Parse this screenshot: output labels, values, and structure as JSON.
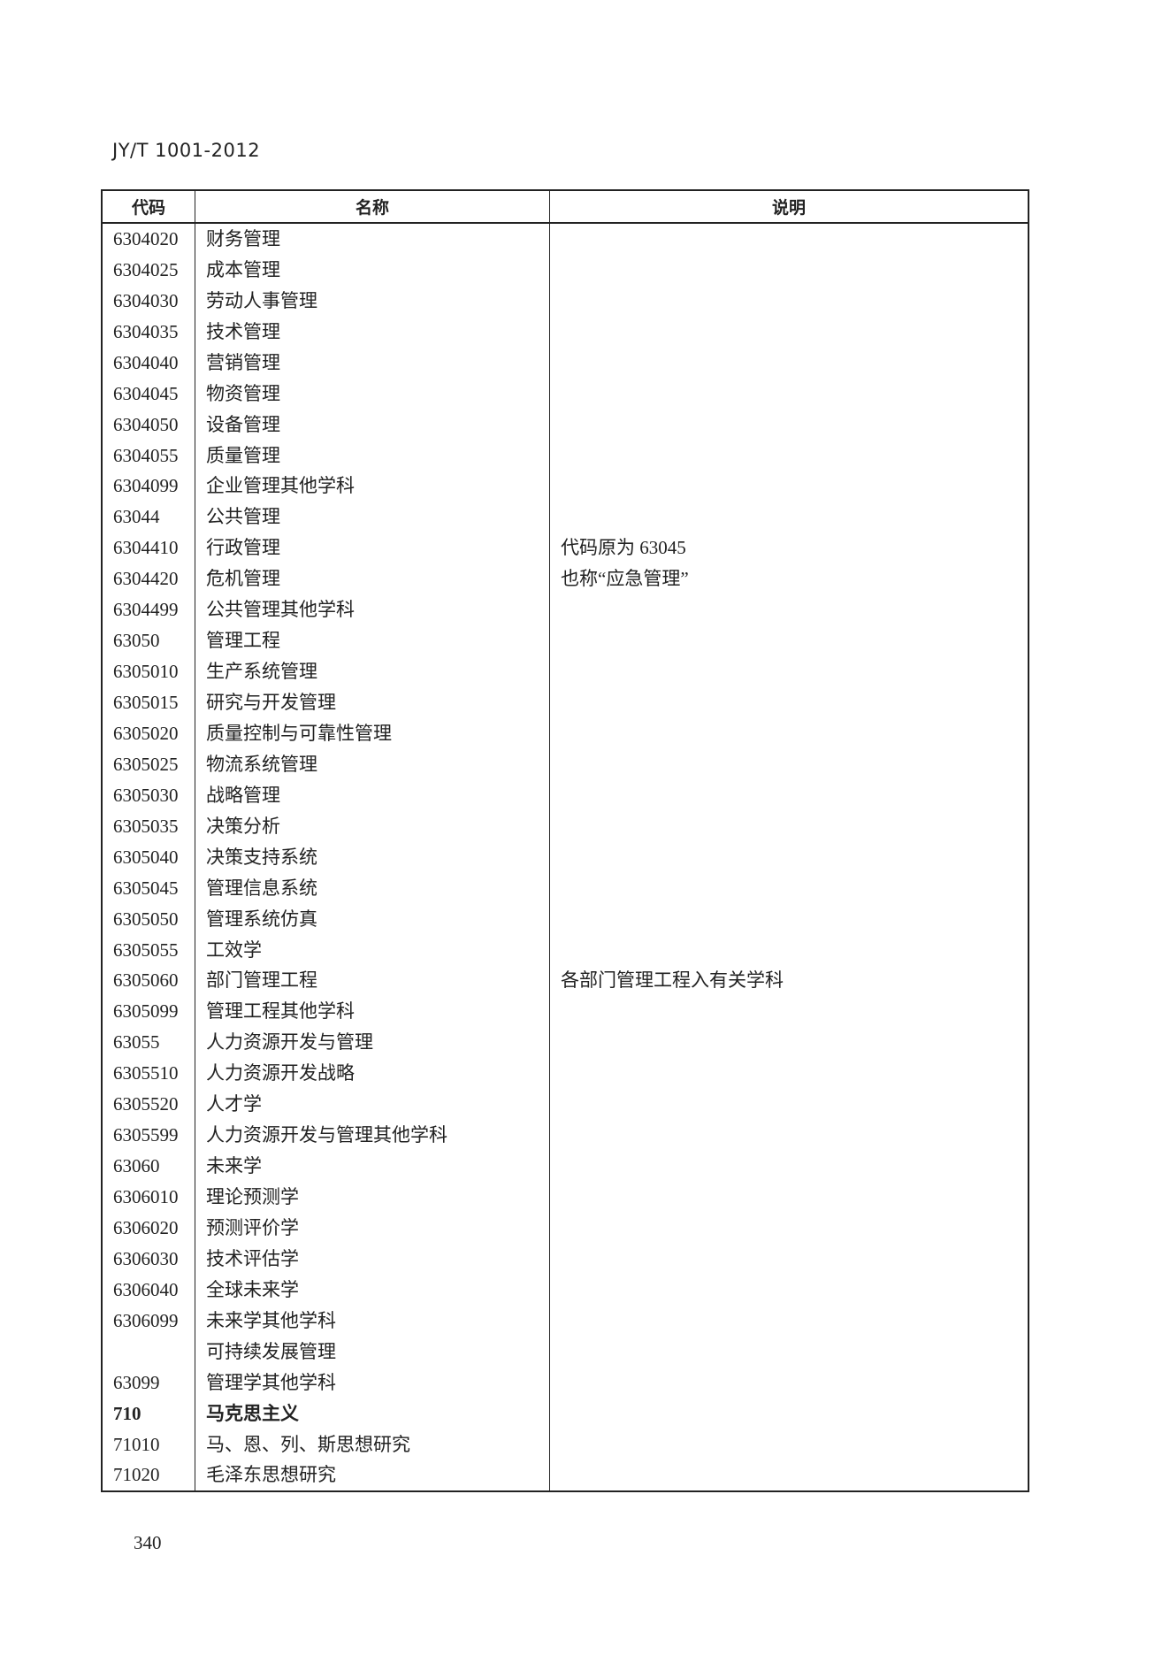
{
  "header": {
    "doc_id": "JY/T 1001-2012"
  },
  "table": {
    "columns": [
      "代码",
      "名称",
      "说明"
    ],
    "rows": [
      {
        "code": "6304020",
        "name": "财务管理",
        "note": ""
      },
      {
        "code": "6304025",
        "name": "成本管理",
        "note": ""
      },
      {
        "code": "6304030",
        "name": "劳动人事管理",
        "note": ""
      },
      {
        "code": "6304035",
        "name": "技术管理",
        "note": ""
      },
      {
        "code": "6304040",
        "name": "营销管理",
        "note": ""
      },
      {
        "code": "6304045",
        "name": "物资管理",
        "note": ""
      },
      {
        "code": "6304050",
        "name": "设备管理",
        "note": ""
      },
      {
        "code": "6304055",
        "name": "质量管理",
        "note": ""
      },
      {
        "code": "6304099",
        "name": "企业管理其他学科",
        "note": ""
      },
      {
        "code": "63044",
        "name": "公共管理",
        "note": ""
      },
      {
        "code": "6304410",
        "name": "行政管理",
        "note": "代码原为 63045"
      },
      {
        "code": "6304420",
        "name": "危机管理",
        "note": "也称“应急管理”"
      },
      {
        "code": "6304499",
        "name": "公共管理其他学科",
        "note": ""
      },
      {
        "code": "63050",
        "name": "管理工程",
        "note": ""
      },
      {
        "code": "6305010",
        "name": "生产系统管理",
        "note": ""
      },
      {
        "code": "6305015",
        "name": "研究与开发管理",
        "note": ""
      },
      {
        "code": "6305020",
        "name": "质量控制与可靠性管理",
        "note": ""
      },
      {
        "code": "6305025",
        "name": "物流系统管理",
        "note": ""
      },
      {
        "code": "6305030",
        "name": "战略管理",
        "note": ""
      },
      {
        "code": "6305035",
        "name": "决策分析",
        "note": ""
      },
      {
        "code": "6305040",
        "name": "决策支持系统",
        "note": ""
      },
      {
        "code": "6305045",
        "name": "管理信息系统",
        "note": ""
      },
      {
        "code": "6305050",
        "name": "管理系统仿真",
        "note": ""
      },
      {
        "code": "6305055",
        "name": "工效学",
        "note": ""
      },
      {
        "code": "6305060",
        "name": "部门管理工程",
        "note": "各部门管理工程入有关学科"
      },
      {
        "code": "6305099",
        "name": "管理工程其他学科",
        "note": ""
      },
      {
        "code": "63055",
        "name": "人力资源开发与管理",
        "note": ""
      },
      {
        "code": "6305510",
        "name": "人力资源开发战略",
        "note": ""
      },
      {
        "code": "6305520",
        "name": "人才学",
        "note": ""
      },
      {
        "code": "6305599",
        "name": "人力资源开发与管理其他学科",
        "note": ""
      },
      {
        "code": "63060",
        "name": "未来学",
        "note": ""
      },
      {
        "code": "6306010",
        "name": "理论预测学",
        "note": ""
      },
      {
        "code": "6306020",
        "name": "预测评价学",
        "note": ""
      },
      {
        "code": "6306030",
        "name": "技术评估学",
        "note": ""
      },
      {
        "code": "6306040",
        "name": "全球未来学",
        "note": ""
      },
      {
        "code": "6306099",
        "name": "未来学其他学科",
        "note": ""
      },
      {
        "code": "",
        "name": "可持续发展管理",
        "note": ""
      },
      {
        "code": "63099",
        "name": "管理学其他学科",
        "note": ""
      },
      {
        "code": "710",
        "name": "马克思主义",
        "note": "",
        "bold": true
      },
      {
        "code": "71010",
        "name": "马、恩、列、斯思想研究",
        "note": ""
      },
      {
        "code": "71020",
        "name": "毛泽东思想研究",
        "note": ""
      }
    ]
  },
  "footer": {
    "page_number": "340"
  }
}
